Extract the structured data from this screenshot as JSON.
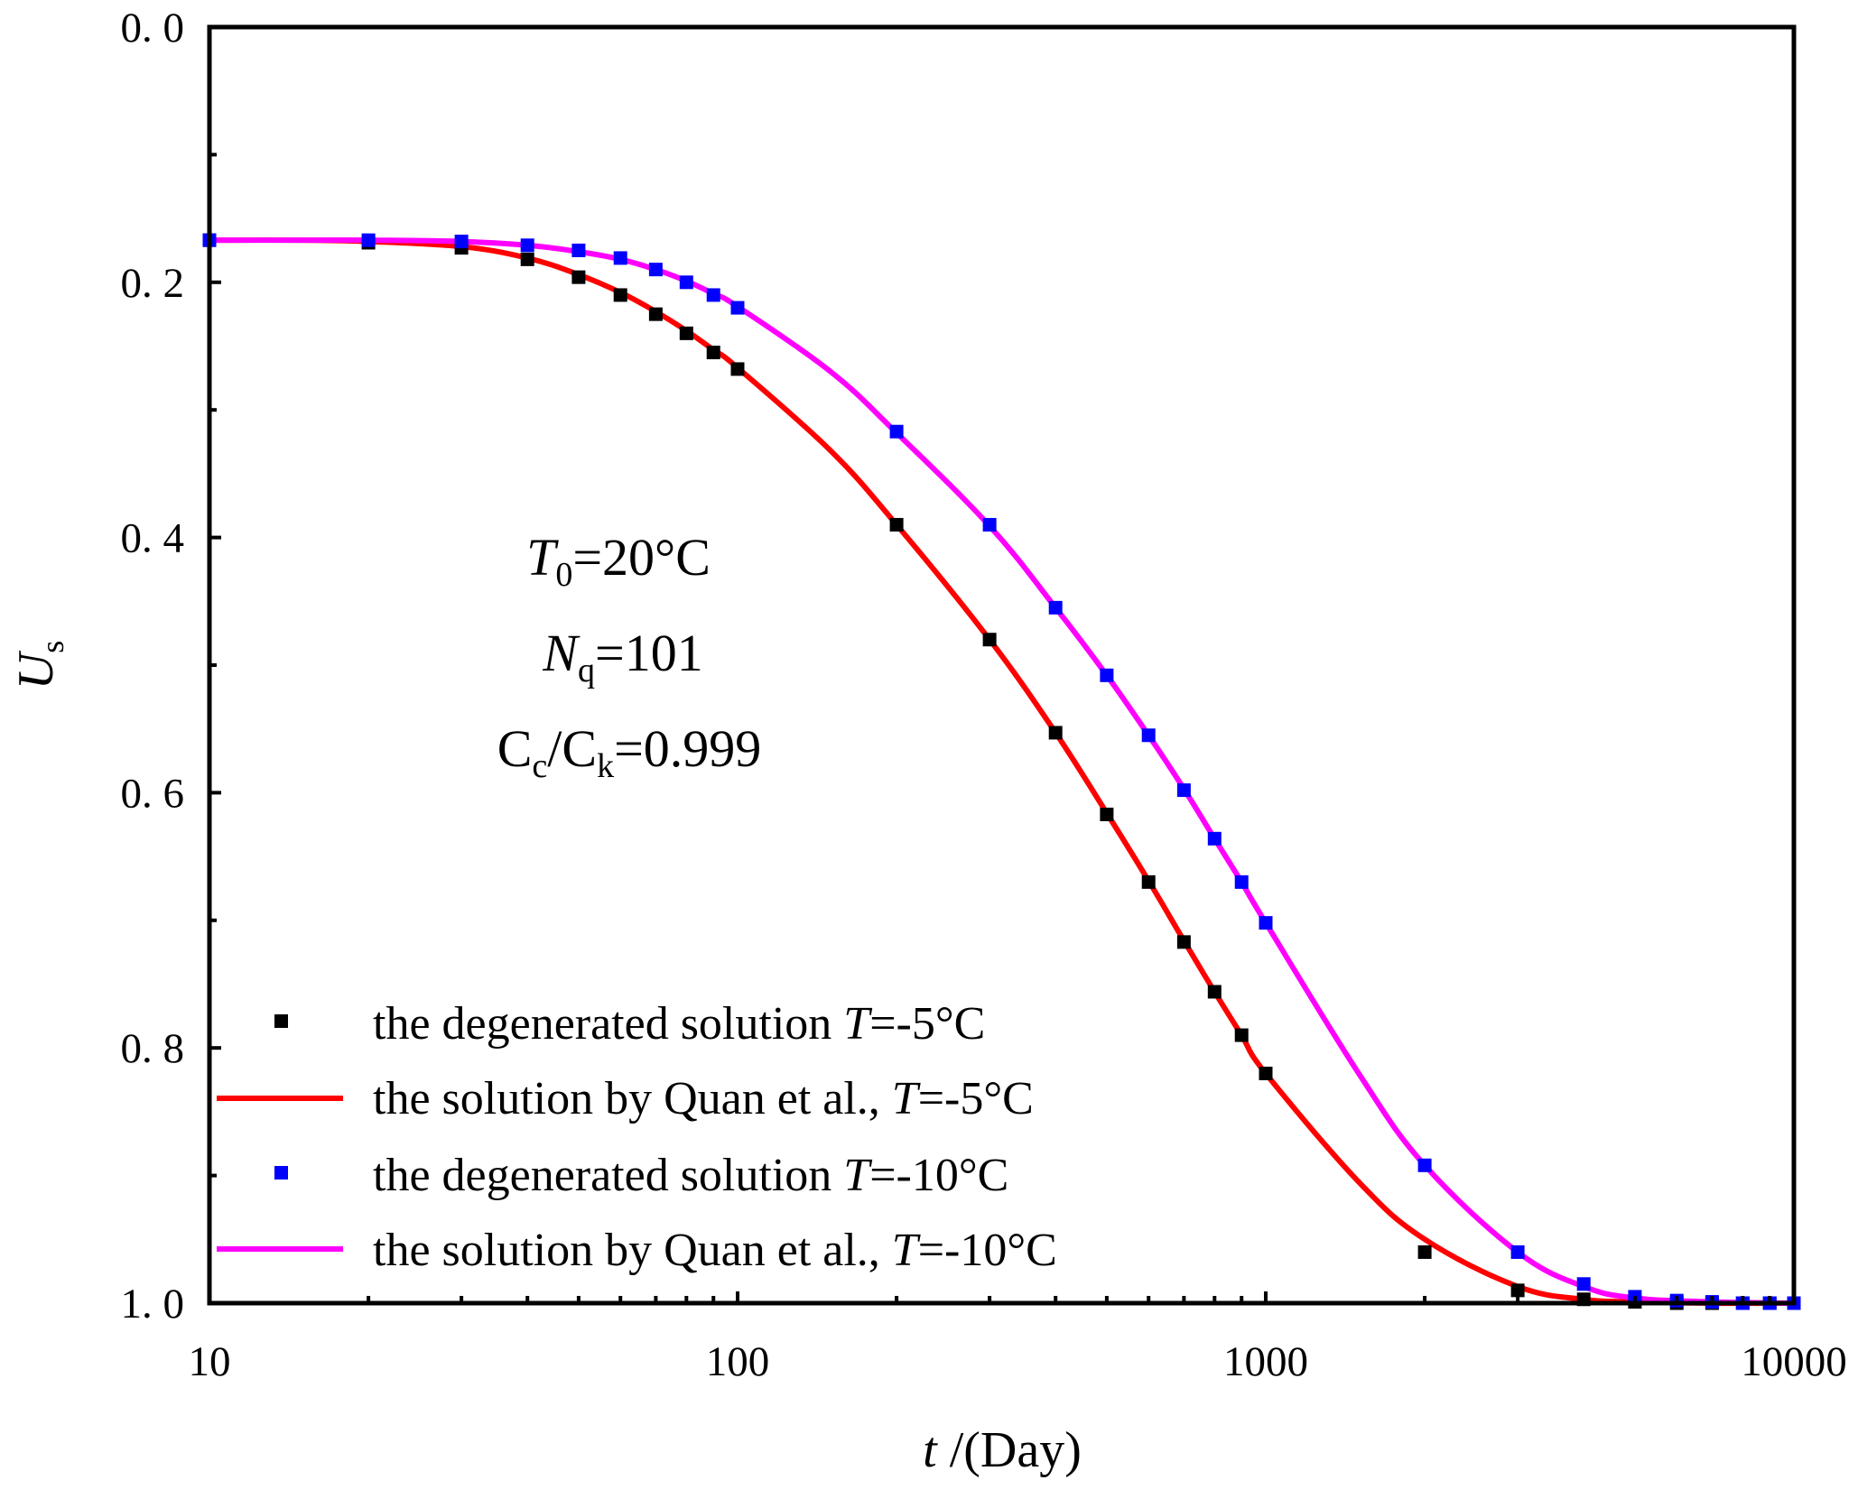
{
  "chart_data": {
    "type": "line",
    "xscale": "log",
    "xlim": [
      10,
      10000
    ],
    "ylim": [
      0.0,
      1.0
    ],
    "yaxis_inverted": true,
    "x_ticks": [
      10,
      100,
      1000,
      10000
    ],
    "x_tick_labels": [
      "10",
      "100",
      "1000",
      "10000"
    ],
    "y_ticks": [
      0.0,
      0.2,
      0.4,
      0.6,
      0.8,
      1.0
    ],
    "y_tick_labels": [
      "0. 0",
      "0. 2",
      "0. 4",
      "0. 6",
      "0. 8",
      "1. 0"
    ],
    "xlabel": {
      "italic": "t",
      "rest": " /(Day)"
    },
    "ylabel": {
      "main": "U",
      "sub": "s"
    },
    "annotations": {
      "t0": {
        "main": "T",
        "sub": "0",
        "rest": "=20°C"
      },
      "nq": {
        "main": "N",
        "sub": "q",
        "rest": "=101"
      },
      "ratio": {
        "a": "C",
        "a_sub": "c",
        "mid": "/C",
        "b_sub": "k",
        "rest": "=0.999"
      }
    },
    "series": [
      {
        "name": "the degenerated solution T=-5°C",
        "legend": {
          "prefix": "the degenerated solution ",
          "italic": "T",
          "suffix": "=-5°C"
        },
        "kind": "scatter",
        "color": "#000000",
        "x": [
          10,
          20,
          30,
          40,
          50,
          60,
          70,
          80,
          90,
          100,
          200,
          300,
          400,
          500,
          600,
          700,
          800,
          900,
          1000,
          2000,
          3000,
          4000,
          5000,
          6000,
          7000,
          8000,
          9000,
          10000
        ],
        "y": [
          0.167,
          0.169,
          0.173,
          0.182,
          0.196,
          0.21,
          0.225,
          0.24,
          0.255,
          0.268,
          0.39,
          0.48,
          0.553,
          0.617,
          0.67,
          0.717,
          0.756,
          0.79,
          0.82,
          0.96,
          0.99,
          0.997,
          0.999,
          1.0,
          1.0,
          1.0,
          1.0,
          1.0
        ]
      },
      {
        "name": "the solution by Quan et al., T=-5°C",
        "legend": {
          "prefix": "the solution by Quan et al., ",
          "italic": "T",
          "suffix": "=-5°C"
        },
        "kind": "line",
        "color": "#ff0000",
        "x": [
          10,
          15,
          20,
          30,
          40,
          50,
          60,
          70,
          80,
          90,
          100,
          150,
          200,
          300,
          400,
          500,
          600,
          700,
          800,
          900,
          1000,
          1500,
          2000,
          3000,
          4000,
          5000,
          7000,
          10000
        ],
        "y": [
          0.167,
          0.167,
          0.168,
          0.172,
          0.181,
          0.194,
          0.208,
          0.223,
          0.238,
          0.253,
          0.267,
          0.332,
          0.39,
          0.48,
          0.553,
          0.616,
          0.669,
          0.716,
          0.756,
          0.79,
          0.82,
          0.905,
          0.95,
          0.987,
          0.997,
          0.999,
          1.0,
          1.0
        ]
      },
      {
        "name": "the degenerated solution T=-10°C",
        "legend": {
          "prefix": "the degenerated solution ",
          "italic": "T",
          "suffix": "=-10°C"
        },
        "kind": "scatter",
        "color": "#0000ff",
        "x": [
          10,
          20,
          30,
          40,
          50,
          60,
          70,
          80,
          90,
          100,
          200,
          300,
          400,
          500,
          600,
          700,
          800,
          900,
          1000,
          2000,
          3000,
          4000,
          5000,
          6000,
          7000,
          8000,
          9000,
          10000
        ],
        "y": [
          0.167,
          0.167,
          0.168,
          0.171,
          0.175,
          0.181,
          0.19,
          0.2,
          0.21,
          0.22,
          0.317,
          0.39,
          0.455,
          0.508,
          0.555,
          0.598,
          0.636,
          0.67,
          0.702,
          0.892,
          0.96,
          0.985,
          0.995,
          0.998,
          0.999,
          1.0,
          1.0,
          1.0
        ]
      },
      {
        "name": "the solution by Quan et al., T=-10°C",
        "legend": {
          "prefix": "the solution by Quan et al., ",
          "italic": "T",
          "suffix": "=-10°C"
        },
        "kind": "line",
        "color": "#ff00ff",
        "x": [
          10,
          15,
          20,
          30,
          40,
          50,
          60,
          70,
          80,
          90,
          100,
          150,
          200,
          300,
          400,
          500,
          600,
          700,
          800,
          900,
          1000,
          1500,
          2000,
          3000,
          4000,
          5000,
          7000,
          10000
        ],
        "y": [
          0.167,
          0.167,
          0.167,
          0.168,
          0.171,
          0.176,
          0.182,
          0.19,
          0.199,
          0.209,
          0.219,
          0.27,
          0.318,
          0.391,
          0.455,
          0.508,
          0.555,
          0.597,
          0.636,
          0.67,
          0.702,
          0.82,
          0.892,
          0.96,
          0.987,
          0.996,
          0.999,
          1.0
        ]
      }
    ]
  }
}
